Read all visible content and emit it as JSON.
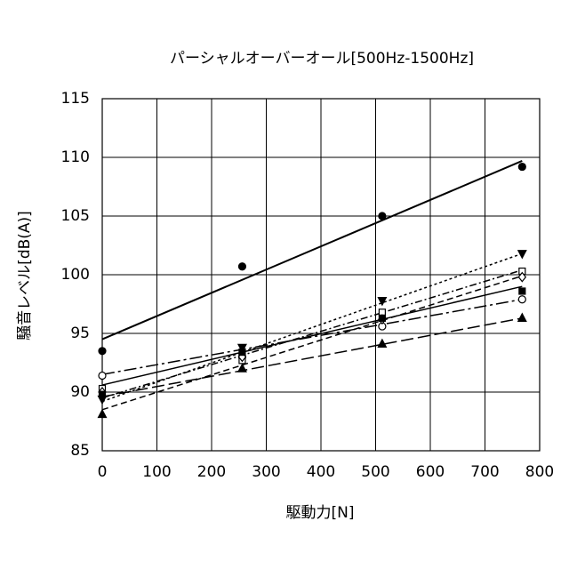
{
  "chart_data": {
    "type": "scatter",
    "title": "パーシャルオーバーオール[500Hz-1500Hz]",
    "x_label": "駆動力[N]",
    "y_label": "騒音レベル[dB(A)]",
    "x": [
      0,
      256,
      512,
      768
    ],
    "trend_x": [
      0,
      768
    ],
    "xlim": [
      0,
      800
    ],
    "xticks": [
      0,
      100,
      200,
      300,
      400,
      500,
      600,
      700,
      800
    ],
    "ylim": [
      85,
      115
    ],
    "yticks": [
      85,
      90,
      95,
      100,
      105,
      110,
      115
    ],
    "grid": true,
    "series": [
      {
        "color": "#000000",
        "marker": "circle",
        "filled": true,
        "line_style": "solid",
        "values": [
          93.5,
          100.7,
          105.0,
          109.2
        ],
        "trend": [
          94.5,
          109.7
        ]
      },
      {
        "color": "#000000",
        "marker": "triangle-down",
        "filled": true,
        "line_style": "dotted",
        "values": [
          89.4,
          93.8,
          97.8,
          101.8
        ],
        "trend": [
          89.2,
          101.8
        ]
      },
      {
        "color": "#000000",
        "marker": "circle",
        "filled": false,
        "line_style": "long-dash-dot",
        "values": [
          91.4,
          93.0,
          95.6,
          97.9
        ],
        "trend": [
          91.5,
          97.9
        ]
      },
      {
        "color": "#000000",
        "marker": "triangle-up",
        "filled": true,
        "line_style": "long-dash",
        "values": [
          88.1,
          92.0,
          94.1,
          96.3
        ],
        "trend": [
          89.6,
          96.3
        ]
      },
      {
        "color": "#000000",
        "marker": "square",
        "filled": false,
        "line_style": "dash-dot",
        "values": [
          90.3,
          92.7,
          96.8,
          100.3
        ],
        "trend": [
          89.5,
          100.4
        ]
      },
      {
        "color": "#000000",
        "marker": "diamond",
        "filled": false,
        "line_style": "dashed",
        "values": [
          90.0,
          93.0,
          96.2,
          99.8
        ],
        "trend": [
          88.5,
          99.9
        ]
      },
      {
        "color": "#000000",
        "marker": "square",
        "filled": true,
        "line_style": "solid",
        "values": [
          89.8,
          93.4,
          96.3,
          98.6
        ],
        "trend": [
          90.6,
          99.0
        ]
      }
    ]
  }
}
